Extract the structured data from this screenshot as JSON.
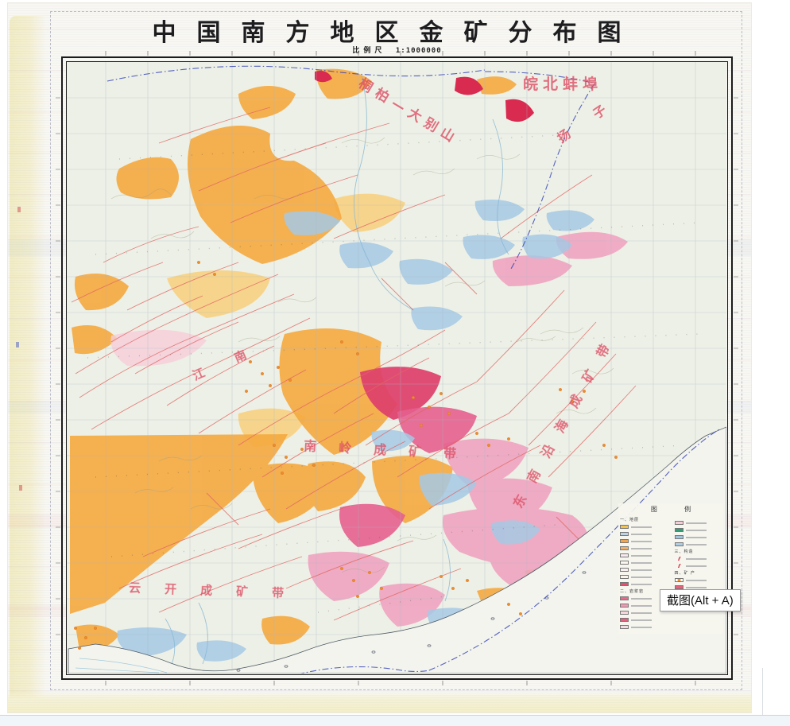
{
  "page": {
    "tooltip": "截图(Alt + A)"
  },
  "map": {
    "title": "中国南方地区金矿分布图",
    "scale_label": "比例尺",
    "scale_value": "1:1000000",
    "region_labels": [
      {
        "text": "桐柏—大别山"
      },
      {
        "text": "皖北蚌埠"
      },
      {
        "text": "扬子"
      },
      {
        "text": "江南"
      },
      {
        "text": "南岭成矿带"
      },
      {
        "text": "东南沿海成矿带"
      },
      {
        "text": "云开成矿带"
      }
    ],
    "legend": {
      "title": "图 例",
      "left": [
        {
          "t": "h",
          "label": "一、地层"
        },
        {
          "t": "i",
          "style": "solid",
          "color": "#f2c24e"
        },
        {
          "t": "i",
          "style": "solid",
          "color": "#bcd4e6"
        },
        {
          "t": "i",
          "style": "hatch",
          "color": "#f2a54e"
        },
        {
          "t": "i",
          "style": "hatch",
          "color": "#f0b06a"
        },
        {
          "t": "i",
          "style": "outline",
          "color": "#f7e9ee"
        },
        {
          "t": "i",
          "style": "outline",
          "color": "#fdf6f0"
        },
        {
          "t": "i",
          "style": "outline",
          "color": "#f9eef2"
        },
        {
          "t": "i",
          "style": "outline",
          "color": "#fbf3ea"
        },
        {
          "t": "i",
          "style": "solid",
          "color": "#e2506e"
        },
        {
          "t": "h",
          "label": "二、岩浆岩"
        },
        {
          "t": "i",
          "style": "hatch",
          "color": "#e86a8a"
        },
        {
          "t": "i",
          "style": "solid",
          "color": "#ef9ab2"
        },
        {
          "t": "i",
          "style": "outline",
          "color": "#f6d7e0"
        },
        {
          "t": "i",
          "style": "solid",
          "color": "#e4607c"
        },
        {
          "t": "i",
          "style": "outline",
          "color": "#f2dce2"
        }
      ],
      "right": [
        {
          "t": "i",
          "style": "outline",
          "color": "#f6ccd6"
        },
        {
          "t": "i",
          "style": "solid",
          "color": "#2f9e77"
        },
        {
          "t": "i",
          "style": "hatchb",
          "color": "#9fc4de"
        },
        {
          "t": "i",
          "style": "hatchb",
          "color": "#aecde2"
        },
        {
          "t": "h",
          "label": "三、构造"
        },
        {
          "t": "i",
          "style": "line",
          "color": "#d84a5a"
        },
        {
          "t": "i",
          "style": "line",
          "color": "#d84a5a"
        },
        {
          "t": "h",
          "label": "四、矿 产"
        },
        {
          "t": "i",
          "style": "dot",
          "color": "#ef8f2e"
        },
        {
          "t": "i",
          "style": "solid",
          "color": "#e8607a"
        },
        {
          "t": "i",
          "style": "dot",
          "color": "#ef8f2e"
        }
      ]
    },
    "colors": {
      "strata_orange": "#f5a93f",
      "strata_light_orange": "#f8cf7a",
      "strata_pink": "#f0a4c0",
      "magma_magenta": "#e45f8e",
      "volcanic_crimson": "#d92a50",
      "water_blue": "#a6c9e4",
      "fault_red": "#e06565",
      "boundary_blue": "#3a49b8",
      "label_red": "#dd4f66"
    }
  }
}
